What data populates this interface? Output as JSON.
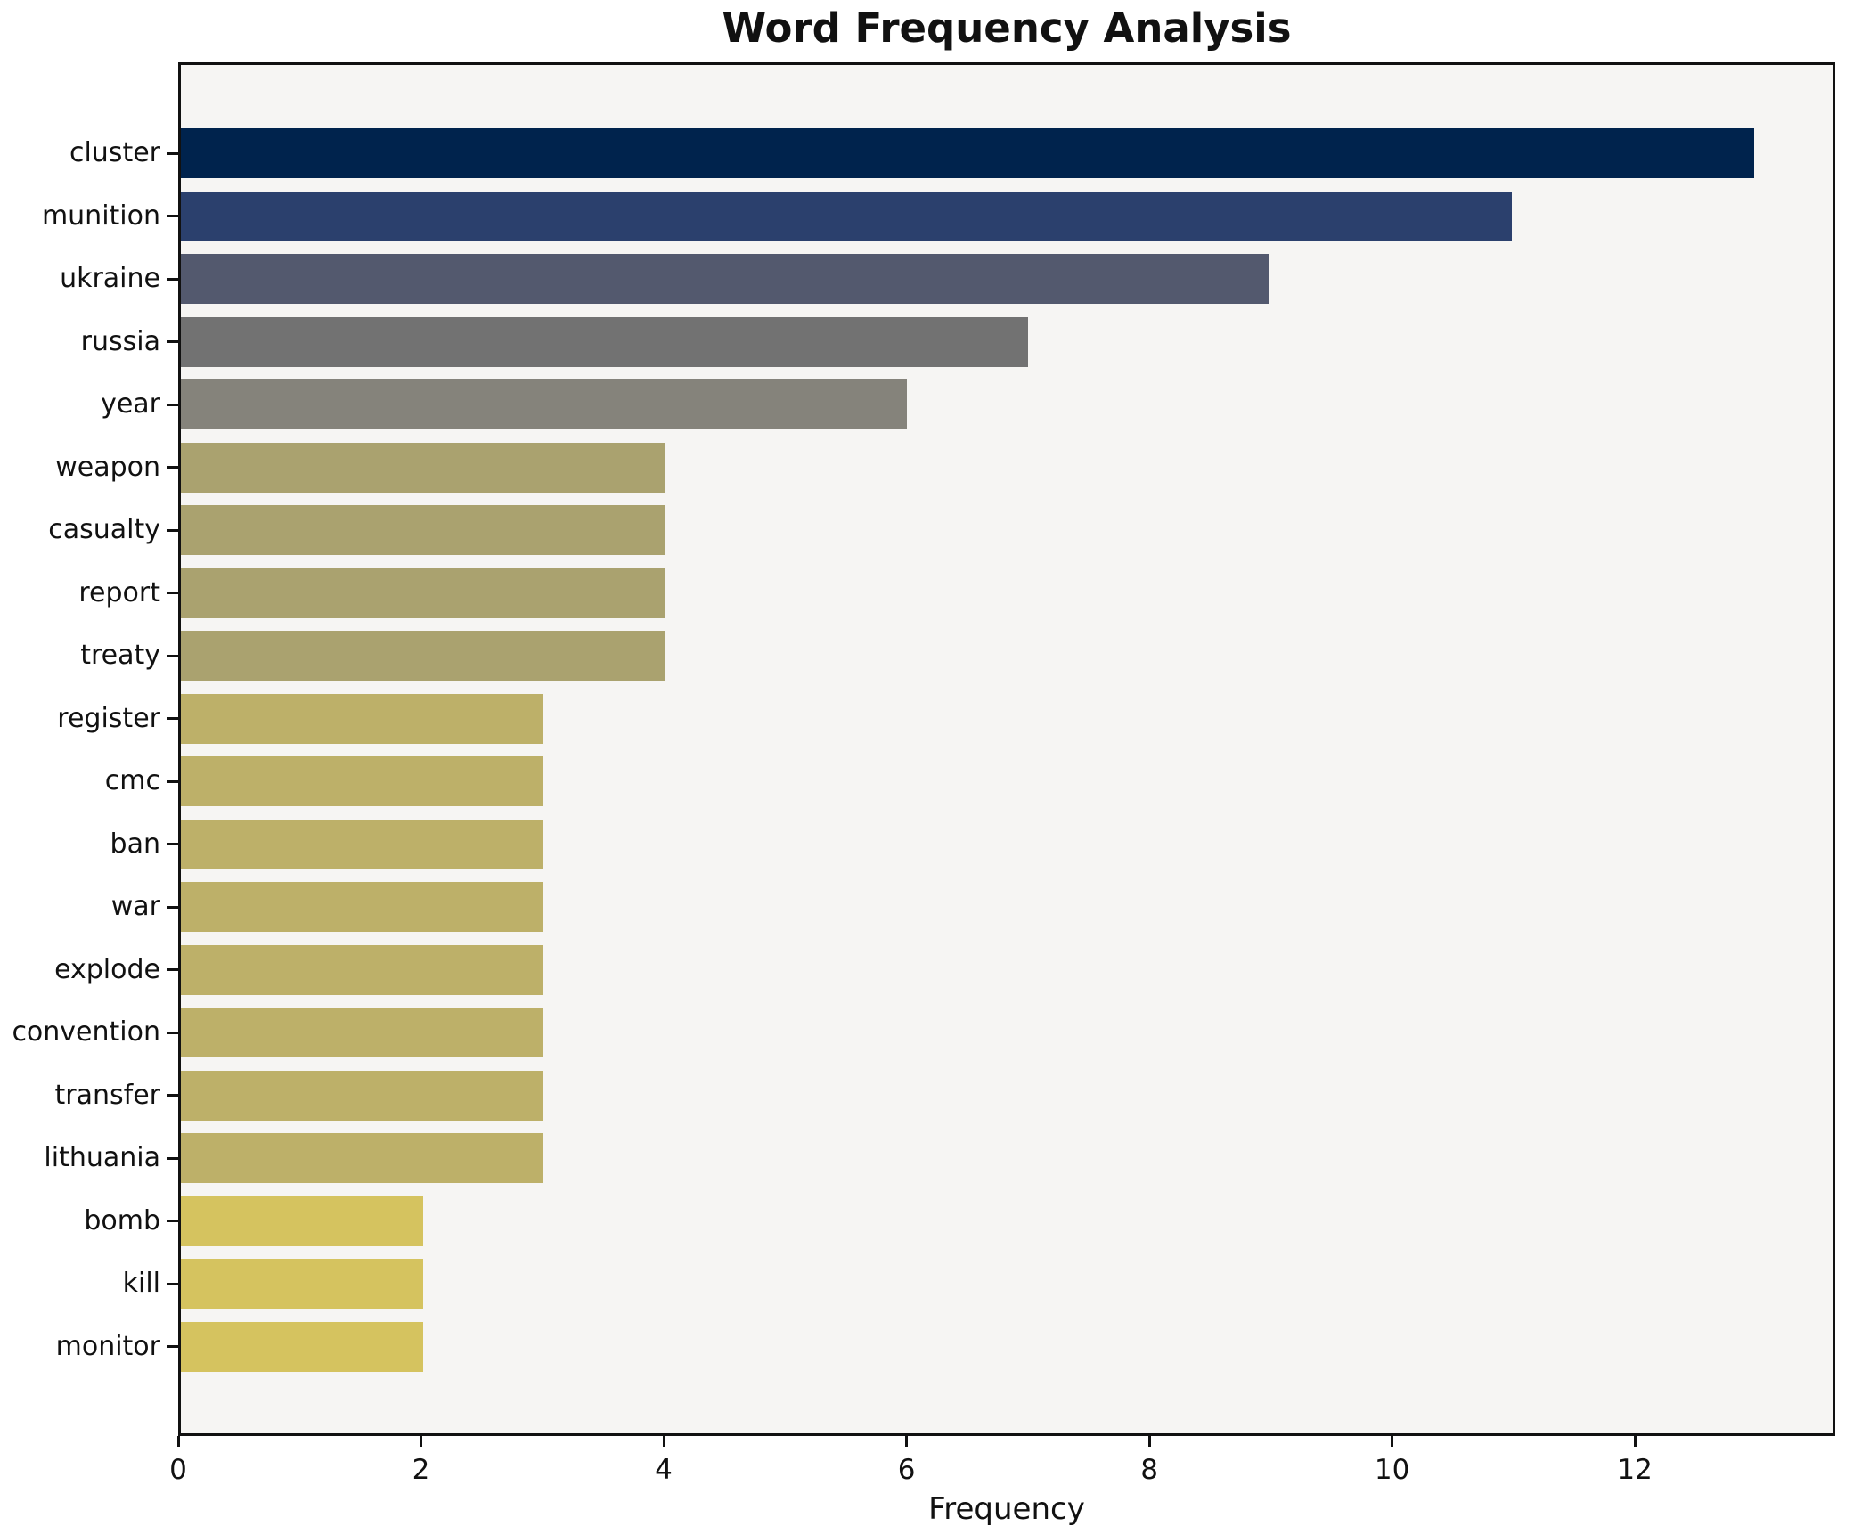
{
  "title": "Word Frequency Analysis",
  "xlabel": "Frequency",
  "chart_data": {
    "type": "bar",
    "orientation": "horizontal",
    "title": "Word Frequency Analysis",
    "xlabel": "Frequency",
    "ylabel": "",
    "categories": [
      "cluster",
      "munition",
      "ukraine",
      "russia",
      "year",
      "weapon",
      "casualty",
      "report",
      "treaty",
      "register",
      "cmc",
      "ban",
      "war",
      "explode",
      "convention",
      "transfer",
      "lithuania",
      "bomb",
      "kill",
      "monitor"
    ],
    "values": [
      13,
      11,
      9,
      7,
      6,
      4,
      4,
      4,
      4,
      3,
      3,
      3,
      3,
      3,
      3,
      3,
      3,
      2,
      2,
      2
    ],
    "bar_colors": [
      "#00234d",
      "#2b406d",
      "#53596e",
      "#727272",
      "#85837b",
      "#aaa26f",
      "#aaa26f",
      "#aaa26f",
      "#aaa26f",
      "#bdb069",
      "#bdb069",
      "#bdb069",
      "#bdb069",
      "#bdb069",
      "#bdb069",
      "#bdb069",
      "#bdb069",
      "#d5c35f",
      "#d5c35f",
      "#d5c35f"
    ],
    "x_ticks": [
      0,
      2,
      4,
      6,
      8,
      10,
      12
    ],
    "xlim": [
      0,
      13.65
    ],
    "grid": false,
    "legend": null,
    "plot_background": "#f6f5f3",
    "figure_background": "#ffffff",
    "spine_color": "#111111"
  }
}
